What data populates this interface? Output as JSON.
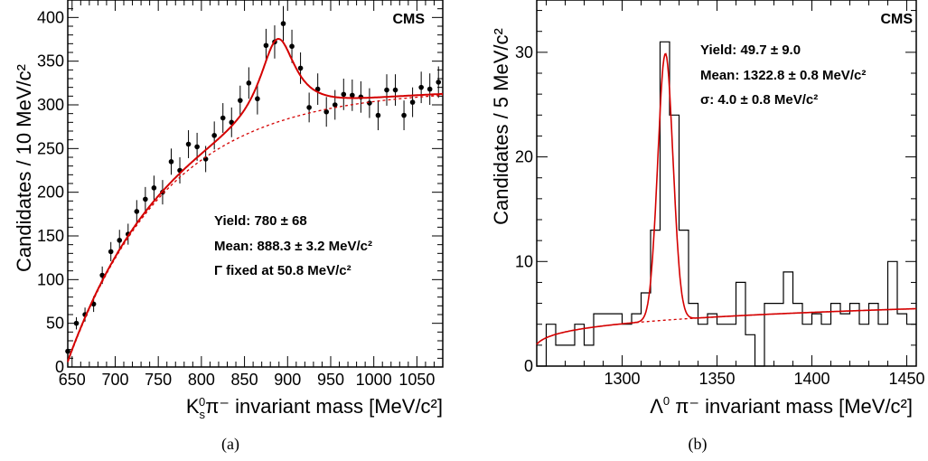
{
  "chart_data": [
    {
      "type": "scatter",
      "panel_label": "(a)",
      "experiment_label": "CMS",
      "xlabel": {
        "main": "K",
        "sub": "s",
        "sup": "0",
        "rest": "π⁻  invariant mass [MeV/c²]"
      },
      "ylabel": "Candidates / 10 MeV/c²",
      "xlim": [
        645,
        1080
      ],
      "ylim": [
        0,
        420
      ],
      "x_ticks": [
        650,
        700,
        750,
        800,
        850,
        900,
        950,
        1000,
        1050
      ],
      "x_tick_labels": [
        "650",
        "700",
        "750",
        "800",
        "850",
        "900",
        "950",
        "1000",
        "1050"
      ],
      "y_ticks": [
        0,
        50,
        100,
        150,
        200,
        250,
        300,
        350,
        400
      ],
      "y_tick_labels": [
        "0",
        "50",
        "100",
        "150",
        "200",
        "250",
        "300",
        "350",
        "400"
      ],
      "annotations": [
        "Yield: 780 ± 68",
        "Mean: 888.3 ± 3.2 MeV/c²",
        "Γ fixed at 50.8 MeV/c²"
      ],
      "points": [
        {
          "x": 645,
          "y": 18,
          "err": 5
        },
        {
          "x": 655,
          "y": 50,
          "err": 7
        },
        {
          "x": 665,
          "y": 60,
          "err": 8
        },
        {
          "x": 675,
          "y": 72,
          "err": 9
        },
        {
          "x": 685,
          "y": 105,
          "err": 10
        },
        {
          "x": 695,
          "y": 132,
          "err": 11
        },
        {
          "x": 705,
          "y": 145,
          "err": 12
        },
        {
          "x": 715,
          "y": 152,
          "err": 12
        },
        {
          "x": 725,
          "y": 178,
          "err": 13
        },
        {
          "x": 735,
          "y": 192,
          "err": 14
        },
        {
          "x": 745,
          "y": 205,
          "err": 14
        },
        {
          "x": 755,
          "y": 200,
          "err": 14
        },
        {
          "x": 765,
          "y": 235,
          "err": 15
        },
        {
          "x": 775,
          "y": 225,
          "err": 15
        },
        {
          "x": 785,
          "y": 255,
          "err": 16
        },
        {
          "x": 795,
          "y": 252,
          "err": 16
        },
        {
          "x": 805,
          "y": 238,
          "err": 15
        },
        {
          "x": 815,
          "y": 265,
          "err": 16
        },
        {
          "x": 825,
          "y": 285,
          "err": 17
        },
        {
          "x": 835,
          "y": 280,
          "err": 17
        },
        {
          "x": 845,
          "y": 305,
          "err": 17
        },
        {
          "x": 855,
          "y": 325,
          "err": 18
        },
        {
          "x": 865,
          "y": 307,
          "err": 18
        },
        {
          "x": 875,
          "y": 368,
          "err": 19
        },
        {
          "x": 885,
          "y": 372,
          "err": 19
        },
        {
          "x": 895,
          "y": 393,
          "err": 20
        },
        {
          "x": 905,
          "y": 367,
          "err": 19
        },
        {
          "x": 915,
          "y": 342,
          "err": 18
        },
        {
          "x": 925,
          "y": 297,
          "err": 17
        },
        {
          "x": 935,
          "y": 318,
          "err": 18
        },
        {
          "x": 945,
          "y": 292,
          "err": 17
        },
        {
          "x": 955,
          "y": 300,
          "err": 17
        },
        {
          "x": 965,
          "y": 312,
          "err": 18
        },
        {
          "x": 975,
          "y": 311,
          "err": 18
        },
        {
          "x": 985,
          "y": 309,
          "err": 18
        },
        {
          "x": 995,
          "y": 302,
          "err": 17
        },
        {
          "x": 1005,
          "y": 288,
          "err": 17
        },
        {
          "x": 1015,
          "y": 317,
          "err": 18
        },
        {
          "x": 1025,
          "y": 317,
          "err": 18
        },
        {
          "x": 1035,
          "y": 288,
          "err": 17
        },
        {
          "x": 1045,
          "y": 303,
          "err": 17
        },
        {
          "x": 1055,
          "y": 320,
          "err": 18
        },
        {
          "x": 1065,
          "y": 318,
          "err": 18
        },
        {
          "x": 1075,
          "y": 326,
          "err": 18
        }
      ],
      "fit": {
        "background_curve": "A*(1-exp(-(x-x0)/tau))",
        "A": 318,
        "x0": 643,
        "tau": 115,
        "signal_mean": 888.3,
        "signal_gamma": 50.8,
        "signal_amplitude": 95,
        "line_color": "#d40000"
      }
    },
    {
      "type": "histogram",
      "panel_label": "(b)",
      "experiment_label": "CMS",
      "xlabel": {
        "main": "Λ",
        "sup": "0",
        "rest": " π⁻ invariant mass [MeV/c²]"
      },
      "ylabel": "Candidates / 5 MeV/c²",
      "xlim": [
        1255,
        1455
      ],
      "ylim": [
        0,
        35
      ],
      "x_ticks": [
        1300,
        1350,
        1400,
        1450
      ],
      "x_tick_labels": [
        "1300",
        "1350",
        "1400",
        "1450"
      ],
      "y_ticks": [
        0,
        10,
        20,
        30
      ],
      "y_tick_labels": [
        "0",
        "10",
        "20",
        "30"
      ],
      "annotations": [
        "Yield: 49.7 ± 9.0",
        "Mean: 1322.8 ± 0.8 MeV/c²",
        "σ: 4.0 ± 0.8 MeV/c²"
      ],
      "bin_low_edges": [
        1255,
        1260,
        1265,
        1270,
        1275,
        1280,
        1285,
        1290,
        1295,
        1300,
        1305,
        1310,
        1315,
        1320,
        1325,
        1330,
        1335,
        1340,
        1345,
        1350,
        1355,
        1360,
        1365,
        1370,
        1375,
        1380,
        1385,
        1390,
        1395,
        1400,
        1405,
        1410,
        1415,
        1420,
        1425,
        1430,
        1435,
        1440,
        1445,
        1450
      ],
      "bin_width": 5,
      "counts": [
        0,
        4,
        2,
        2,
        4,
        2,
        5,
        5,
        5,
        4,
        5,
        7,
        13,
        31,
        24,
        13,
        6,
        4,
        5,
        4,
        4,
        8,
        3,
        0,
        6,
        6,
        9,
        6,
        4,
        5,
        4,
        6,
        5,
        6,
        4,
        6,
        4,
        10,
        5,
        4
      ],
      "fit": {
        "background_curve": "A*(x-x0)^p",
        "A": 1.8,
        "x0": 1253,
        "p": 0.21,
        "signal_mean": 1322.8,
        "signal_sigma": 4.0,
        "signal_amplitude": 25.5,
        "line_color": "#d40000"
      }
    }
  ]
}
